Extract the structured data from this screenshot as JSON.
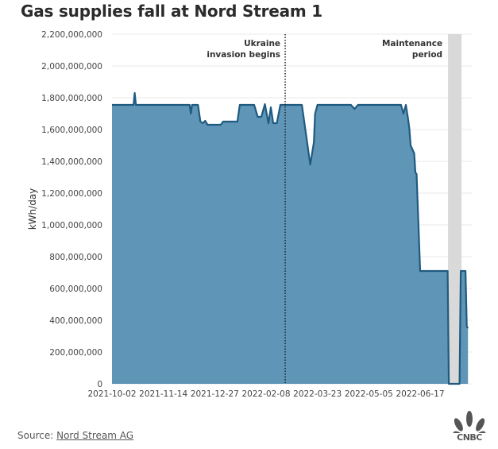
{
  "title": "Gas supplies fall at Nord Stream 1",
  "source": {
    "label": "Source:",
    "link_text": "Nord Stream AG"
  },
  "logo": {
    "text": "CNBC",
    "icon": "peacock-icon"
  },
  "colors": {
    "area_fill": "#5f95b6",
    "line": "#1f5a80",
    "maintenance_band": "#d9d9d9",
    "grid": "#e8e8e8"
  },
  "annotations": {
    "ukraine": {
      "line1": "Ukraine",
      "line2": "invasion begins",
      "date": "2022-02-24"
    },
    "maintenance": {
      "line1": "Maintenance",
      "line2": "period",
      "start": "2022-07-11",
      "end": "2022-07-21"
    }
  },
  "chart_data": {
    "type": "area",
    "title": "Gas supplies fall at Nord Stream 1",
    "xlabel": "",
    "ylabel": "kWh/day",
    "ylim": [
      0,
      2200000000
    ],
    "yticks": [
      0,
      200000000,
      400000000,
      600000000,
      800000000,
      1000000000,
      1200000000,
      1400000000,
      1600000000,
      1800000000,
      2000000000,
      2200000000
    ],
    "ytick_labels": [
      "0",
      "200,000,000",
      "400,000,000",
      "600,000,000",
      "800,000,000",
      "1,000,000,000",
      "1,200,000,000",
      "1,400,000,000",
      "1,600,000,000",
      "1,800,000,000",
      "2,000,000,000",
      "2,200,000,000"
    ],
    "xtick_labels": [
      "2021-10-02",
      "2021-11-14",
      "2021-12-27",
      "2022-02-08",
      "2022-03-23",
      "2022-05-05",
      "2022-06-17"
    ],
    "grid": true,
    "legend": null,
    "series": [
      {
        "name": "Nord Stream 1 gas flow",
        "points": [
          [
            "2021-10-02",
            1755000000
          ],
          [
            "2021-10-20",
            1755000000
          ],
          [
            "2021-10-21",
            1830000000
          ],
          [
            "2021-10-22",
            1755000000
          ],
          [
            "2021-12-06",
            1755000000
          ],
          [
            "2021-12-07",
            1700000000
          ],
          [
            "2021-12-08",
            1755000000
          ],
          [
            "2021-12-13",
            1755000000
          ],
          [
            "2021-12-15",
            1650000000
          ],
          [
            "2021-12-17",
            1640000000
          ],
          [
            "2021-12-19",
            1655000000
          ],
          [
            "2021-12-21",
            1630000000
          ],
          [
            "2022-01-01",
            1630000000
          ],
          [
            "2022-01-03",
            1650000000
          ],
          [
            "2022-01-15",
            1650000000
          ],
          [
            "2022-01-17",
            1755000000
          ],
          [
            "2022-01-29",
            1755000000
          ],
          [
            "2022-02-01",
            1680000000
          ],
          [
            "2022-02-04",
            1680000000
          ],
          [
            "2022-02-07",
            1760000000
          ],
          [
            "2022-02-10",
            1640000000
          ],
          [
            "2022-02-12",
            1740000000
          ],
          [
            "2022-02-14",
            1640000000
          ],
          [
            "2022-02-17",
            1640000000
          ],
          [
            "2022-02-20",
            1755000000
          ],
          [
            "2022-03-10",
            1755000000
          ],
          [
            "2022-03-17",
            1380000000
          ],
          [
            "2022-03-20",
            1520000000
          ],
          [
            "2022-03-21",
            1700000000
          ],
          [
            "2022-03-23",
            1755000000
          ],
          [
            "2022-04-20",
            1755000000
          ],
          [
            "2022-04-23",
            1730000000
          ],
          [
            "2022-04-26",
            1755000000
          ],
          [
            "2022-06-01",
            1755000000
          ],
          [
            "2022-06-03",
            1700000000
          ],
          [
            "2022-06-05",
            1755000000
          ],
          [
            "2022-06-07",
            1660000000
          ],
          [
            "2022-06-08",
            1600000000
          ],
          [
            "2022-06-09",
            1500000000
          ],
          [
            "2022-06-12",
            1450000000
          ],
          [
            "2022-06-13",
            1330000000
          ],
          [
            "2022-06-14",
            1320000000
          ],
          [
            "2022-06-17",
            710000000
          ],
          [
            "2022-07-10",
            710000000
          ],
          [
            "2022-07-11",
            0
          ],
          [
            "2022-07-20",
            0
          ],
          [
            "2022-07-21",
            710000000
          ],
          [
            "2022-07-25",
            710000000
          ],
          [
            "2022-07-26",
            360000000
          ],
          [
            "2022-07-27",
            350000000
          ]
        ]
      }
    ]
  }
}
